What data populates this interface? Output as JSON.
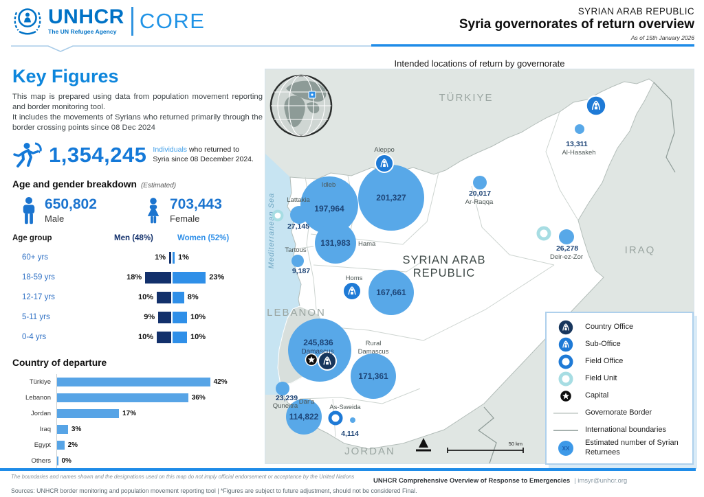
{
  "header": {
    "brand": "UNHCR",
    "tagline": "The UN Refugee Agency",
    "product": "CORE",
    "country_label": "SYRIAN ARAB REPUBLIC",
    "title": "Syria governorates of return overview",
    "as_of": "As of 15th January 2026"
  },
  "key_figures": {
    "heading": "Key Figures",
    "paragraph1": "This map is prepared using data from population movement reporting and border monitoring tool.",
    "paragraph2": "It includes the movements of Syrians who returned primarily through the border crossing points since 08 Dec 2024",
    "total": "1,354,245",
    "total_caption_highlight": "Individuals",
    "total_caption": " who returned to Syria since 08 December 2024."
  },
  "age_gender": {
    "heading": "Age and gender breakdown",
    "note": "(Estimated)",
    "male": {
      "value": "650,802",
      "label": "Male"
    },
    "female": {
      "value": "703,443",
      "label": "Female"
    },
    "col_age": "Age group",
    "col_men": "Men (48%)",
    "col_women": "Women (52%)",
    "rows": [
      {
        "group": "60+ yrs",
        "men": 1,
        "men_label": "1%",
        "women": 1,
        "women_label": "1%"
      },
      {
        "group": "18-59 yrs",
        "men": 18,
        "men_label": "18%",
        "women": 23,
        "women_label": "23%"
      },
      {
        "group": "12-17 yrs",
        "men": 10,
        "men_label": "10%",
        "women": 8,
        "women_label": "8%"
      },
      {
        "group": "5-11 yrs",
        "men": 9,
        "men_label": "9%",
        "women": 10,
        "women_label": "10%"
      },
      {
        "group": "0-4 yrs",
        "men": 10,
        "men_label": "10%",
        "women": 10,
        "women_label": "10%"
      }
    ]
  },
  "departure": {
    "heading": "Country of departure",
    "rows": [
      {
        "country": "Türkiye",
        "pct": 42,
        "label": "42%"
      },
      {
        "country": "Lebanon",
        "pct": 36,
        "label": "36%"
      },
      {
        "country": "Jordan",
        "pct": 17,
        "label": "17%"
      },
      {
        "country": "Iraq",
        "pct": 3,
        "label": "3%"
      },
      {
        "country": "Egypt",
        "pct": 2,
        "label": "2%"
      },
      {
        "country": "Others",
        "pct": 0,
        "label": "0%"
      }
    ]
  },
  "map": {
    "title": "Intended locations of return by governorate",
    "labels": {
      "turkiye": "TÜRKIYE",
      "iraq": "IRAQ",
      "lebanon": "LEBANON",
      "jordan": "JORDAN",
      "syria_line1": "SYRIAN ARAB",
      "syria_line2": "REPUBLIC",
      "sea": "Mediterranean Sea",
      "scale": "50 km"
    },
    "governorates": [
      {
        "name": "Aleppo",
        "value": "201,327"
      },
      {
        "name": "Idleb",
        "value": "197,964"
      },
      {
        "name": "Lattakia",
        "value": "27,145"
      },
      {
        "name": "Hama",
        "value": "131,983"
      },
      {
        "name": "Tartous",
        "value": "9,187"
      },
      {
        "name": "Homs",
        "value": "167,661"
      },
      {
        "name": "Damascus",
        "value": "245,836"
      },
      {
        "name": "Rural Damascus",
        "name_lines": [
          "Rural",
          "Damascus"
        ],
        "value": "171,361"
      },
      {
        "name": "Quneitra",
        "value": "23,239"
      },
      {
        "name": "Dar'a",
        "value": "114,822"
      },
      {
        "name": "As-Sweida",
        "value": "4,114"
      },
      {
        "name": "Ar-Raqqa",
        "value": "20,017"
      },
      {
        "name": "Al-Hasakeh",
        "value": "13,311"
      },
      {
        "name": "Deir-ez-Zor",
        "value": "26,278"
      }
    ]
  },
  "legend": {
    "items": [
      "Country Office",
      "Sub-Office",
      "Field Office",
      "Field Unit",
      "Capital",
      "Governorate Border",
      "International boundaries",
      "Estimated number of Syrian Returnees"
    ],
    "bubble_text": "XX"
  },
  "footer": {
    "disclaimer": "The boundaries and names shown and the designations used on this map do not imply official endorsement or acceptance by the United Nations",
    "org": "UNHCR Comprehensive Overview of Response to Emergencies",
    "email": "| imsyr@unhcr.org",
    "sources": "Sources: UNHCR border monitoring and population movement reporting tool  | *Figures are subject to future adjustment, should not be considered Final."
  },
  "colors": {
    "unhcr_blue": "#0072C6",
    "accent_blue": "#1F8CE8",
    "bubble_blue": "#58A8E8",
    "men_navy": "#12306B",
    "women_blue": "#2F8FE8",
    "bar_blue": "#57A4E6",
    "country_office_navy": "#17365D",
    "sub_office_blue": "#1E7AD6",
    "field_unit_teal": "#A7DDE3"
  },
  "chart_data": [
    {
      "type": "bar",
      "variant": "population-pyramid",
      "title": "Age and gender breakdown (Estimated)",
      "categories": [
        "60+ yrs",
        "18-59 yrs",
        "12-17 yrs",
        "5-11 yrs",
        "0-4 yrs"
      ],
      "series": [
        {
          "name": "Men (48%)",
          "values": [
            1,
            18,
            10,
            9,
            10
          ]
        },
        {
          "name": "Women (52%)",
          "values": [
            1,
            23,
            8,
            10,
            10
          ]
        }
      ],
      "unit": "percent",
      "totals": {
        "male": 650802,
        "female": 703443,
        "all": 1354245
      }
    },
    {
      "type": "bar",
      "variant": "horizontal",
      "title": "Country of departure",
      "categories": [
        "Türkiye",
        "Lebanon",
        "Jordan",
        "Iraq",
        "Egypt",
        "Others"
      ],
      "values": [
        42,
        36,
        17,
        3,
        2,
        0
      ],
      "unit": "percent",
      "xlim": [
        0,
        45
      ]
    },
    {
      "type": "map-bubbles",
      "title": "Intended locations of return by governorate",
      "points": [
        {
          "name": "Aleppo",
          "value": 201327
        },
        {
          "name": "Idleb",
          "value": 197964
        },
        {
          "name": "Lattakia",
          "value": 27145
        },
        {
          "name": "Hama",
          "value": 131983
        },
        {
          "name": "Tartous",
          "value": 9187
        },
        {
          "name": "Homs",
          "value": 167661
        },
        {
          "name": "Damascus",
          "value": 245836
        },
        {
          "name": "Rural Damascus",
          "value": 171361
        },
        {
          "name": "Quneitra",
          "value": 23239
        },
        {
          "name": "Dar'a",
          "value": 114822
        },
        {
          "name": "As-Sweida",
          "value": 4114
        },
        {
          "name": "Ar-Raqqa",
          "value": 20017
        },
        {
          "name": "Al-Hasakeh",
          "value": 13311
        },
        {
          "name": "Deir-ez-Zor",
          "value": 26278
        }
      ]
    }
  ]
}
